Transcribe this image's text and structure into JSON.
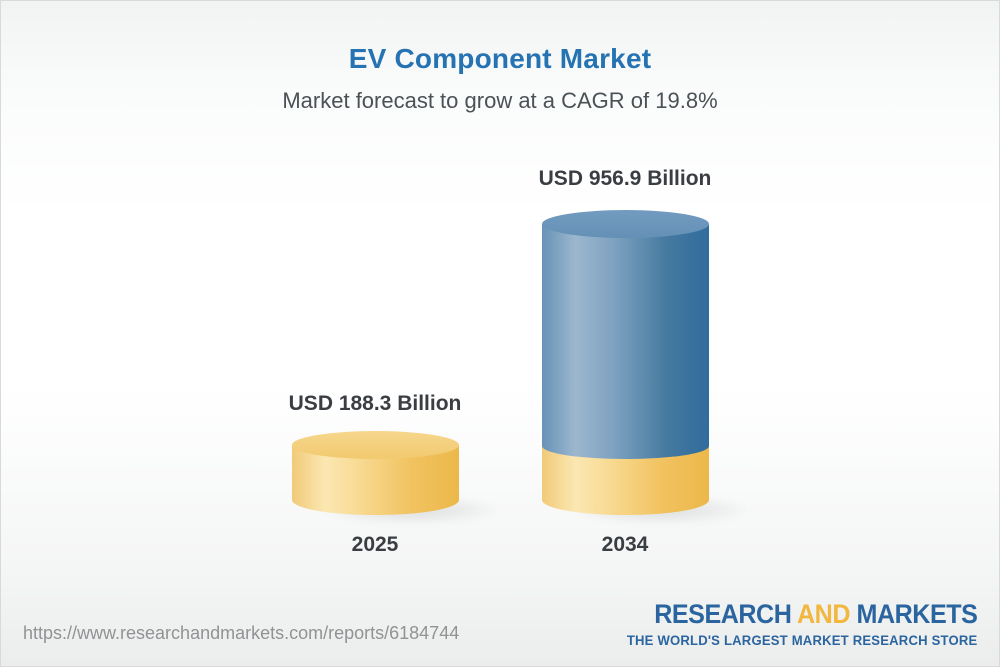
{
  "header": {
    "title": "EV Component Market",
    "subtitle": "Market forecast to grow at a CAGR of 19.8%"
  },
  "chart_data": {
    "type": "bar",
    "style": "3d-cylinder",
    "categories": [
      "2025",
      "2034"
    ],
    "values": [
      188.3,
      956.9
    ],
    "unit": "USD Billion",
    "data_labels": [
      "USD 188.3 Billion",
      "USD 956.9 Billion"
    ],
    "title": "EV Component Market",
    "subtitle": "Market forecast to grow at a CAGR of 19.8%",
    "cagr_percent": 19.8,
    "legend": "none",
    "grid": false,
    "colors": {
      "bar_2025": "#f2c96e",
      "bar_2034_main": "#45799f",
      "bar_2034_base": "#f2c96e",
      "title_text": "#2573b2",
      "label_text": "#3a3e42"
    }
  },
  "footer": {
    "url": "https://www.researchandmarkets.com/reports/6184744",
    "logo": {
      "word1": "RESEARCH",
      "word2": "AND",
      "word3": "MARKETS",
      "tagline": "THE WORLD'S LARGEST MARKET RESEARCH STORE",
      "color_blue": "#2b65a0",
      "color_gold": "#f2b73f"
    }
  }
}
